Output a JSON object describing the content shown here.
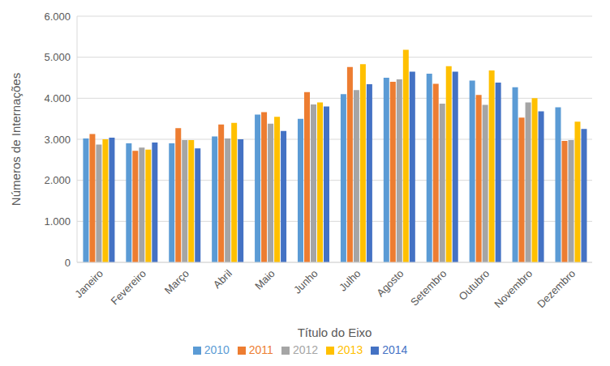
{
  "chart_data": {
    "type": "bar",
    "y_label": "Números de Internações",
    "x_label": "Título do Eixo",
    "categories": [
      "Janeiro",
      "Fevereiro",
      "Março",
      "Abril",
      "Maio",
      "Junho",
      "Julho",
      "Agosto",
      "Setembro",
      "Outubro",
      "Novembro",
      "Dezembro"
    ],
    "series": [
      {
        "name": "2010",
        "color": "#5b9bd5",
        "values": [
          3020,
          2900,
          2900,
          3070,
          3600,
          3500,
          4100,
          4500,
          4600,
          4430,
          4270,
          3780
        ]
      },
      {
        "name": "2011",
        "color": "#ed7d31",
        "values": [
          3130,
          2720,
          3270,
          3360,
          3660,
          4150,
          4760,
          4400,
          4350,
          4080,
          3530,
          2960
        ]
      },
      {
        "name": "2012",
        "color": "#a5a5a5",
        "values": [
          2870,
          2800,
          2980,
          3020,
          3380,
          3850,
          4200,
          4460,
          3870,
          3840,
          3900,
          2980
        ]
      },
      {
        "name": "2013",
        "color": "#ffc000",
        "values": [
          3000,
          2750,
          2980,
          3400,
          3550,
          3900,
          4830,
          5180,
          4780,
          4680,
          4000,
          3430
        ]
      },
      {
        "name": "2014",
        "color": "#4472c4",
        "values": [
          3040,
          2920,
          2780,
          3000,
          3200,
          3800,
          4340,
          4650,
          4650,
          4380,
          3680,
          3250
        ]
      }
    ],
    "ylim": [
      0,
      6000
    ],
    "yticks": [
      0,
      {
        "value": 1000,
        "label": "1.000"
      },
      {
        "value": 2000,
        "label": "2.000"
      },
      {
        "value": 3000,
        "label": "3.000"
      },
      {
        "value": 4000,
        "label": "4.000"
      },
      {
        "value": 5000,
        "label": "5.000"
      },
      {
        "value": 6000,
        "label": "6.000"
      }
    ],
    "grid": true,
    "legend": "bottom"
  }
}
